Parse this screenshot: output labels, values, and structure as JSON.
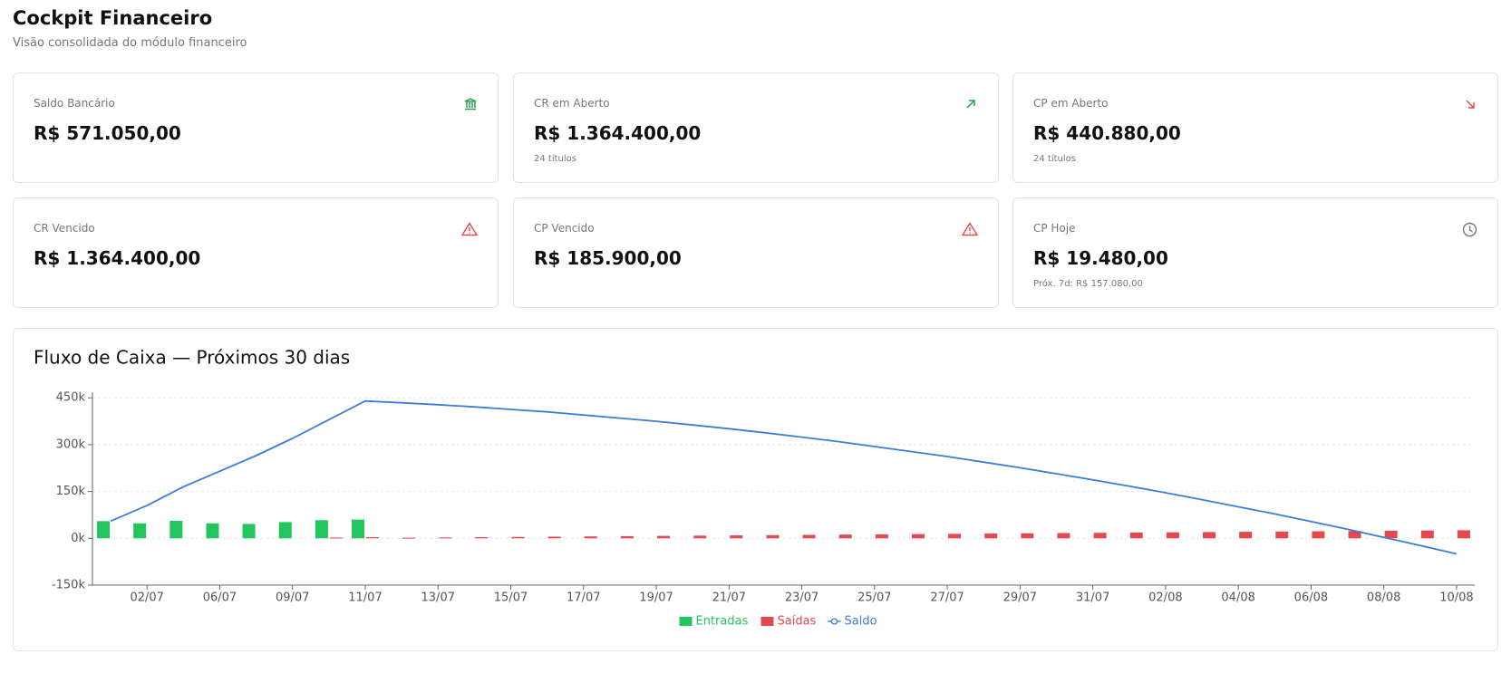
{
  "header": {
    "title": "Cockpit Financeiro",
    "subtitle": "Visão consolidada do módulo financeiro"
  },
  "cards": [
    {
      "label": "Saldo Bancário",
      "value": "R$ 571.050,00"
    },
    {
      "label": "CR em Aberto",
      "value": "R$ 1.364.400,00",
      "sub": "24 títulos"
    },
    {
      "label": "CP em Aberto",
      "value": "R$ 440.880,00",
      "sub": "24 títulos"
    },
    {
      "label": "CR Vencido",
      "value": "R$ 1.364.400,00"
    },
    {
      "label": "CP Vencido",
      "value": "R$ 185.900,00"
    },
    {
      "label": "CP Hoje",
      "value": "R$ 19.480,00",
      "sub": "Próx. 7d: R$ 157.080,00"
    }
  ],
  "chart_data": {
    "type": "bar",
    "title": "Fluxo de Caixa — Próximos 30 dias",
    "categories": [
      null,
      "02/07",
      null,
      "06/07",
      null,
      "09/07",
      null,
      "11/07",
      null,
      "13/07",
      null,
      "15/07",
      null,
      "17/07",
      null,
      "19/07",
      null,
      "21/07",
      null,
      "23/07",
      null,
      "25/07",
      null,
      "27/07",
      null,
      "29/07",
      null,
      "31/07",
      null,
      "02/08",
      null,
      "04/08",
      null,
      "06/08",
      null,
      "08/08",
      null,
      "10/08"
    ],
    "series": [
      {
        "name": "Entradas",
        "type": "bar",
        "color": "#22c55e",
        "values": [
          55000,
          48000,
          56000,
          48000,
          46000,
          52000,
          58000,
          60000,
          null,
          null,
          null,
          null,
          null,
          null,
          null,
          null,
          null,
          null,
          null,
          null,
          null,
          null,
          null,
          null,
          null,
          null,
          null,
          null,
          null,
          null,
          null,
          null,
          null,
          null,
          null,
          null,
          null,
          null
        ]
      },
      {
        "name": "Saídas",
        "type": "bar",
        "color": "#e5484d",
        "values": [
          null,
          null,
          null,
          null,
          null,
          null,
          2500,
          3500,
          2000,
          2800,
          3600,
          4500,
          5300,
          6100,
          6900,
          7800,
          8600,
          9400,
          10200,
          11000,
          11900,
          12700,
          13500,
          14300,
          15200,
          16000,
          16800,
          17600,
          18400,
          19300,
          20100,
          20900,
          21700,
          22600,
          23400,
          24200,
          25000,
          25800
        ]
      },
      {
        "name": "Saldo",
        "type": "line",
        "color": "#3b7dd8",
        "values": [
          55000,
          105000,
          165000,
          215000,
          265000,
          320000,
          380000,
          440000,
          434000,
          428000,
          421000,
          413000,
          405000,
          395000,
          385000,
          375000,
          363000,
          351000,
          338000,
          324000,
          310000,
          294000,
          278000,
          262000,
          244000,
          226000,
          207000,
          187000,
          167000,
          146000,
          124000,
          101000,
          78000,
          54000,
          29000,
          3000,
          -23000,
          -50000
        ]
      }
    ],
    "ylim": [
      -150000,
      468000
    ],
    "yticks": [
      {
        "value": -150000,
        "label": "-150k"
      },
      {
        "value": 0,
        "label": "0k"
      },
      {
        "value": 150000,
        "label": "150k"
      },
      {
        "value": 300000,
        "label": "300k"
      },
      {
        "value": 450000,
        "label": "450k"
      }
    ],
    "grid": true,
    "legend": "bottom"
  }
}
